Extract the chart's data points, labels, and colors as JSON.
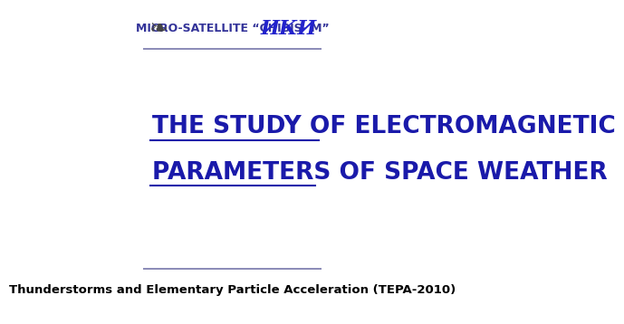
{
  "bg_color": "#ffffff",
  "header_line_color": "#7777aa",
  "footer_line_color": "#7777aa",
  "header_text": "MICRO-SATELLITE “CHIBIS- M”",
  "header_text_color": "#333399",
  "header_fontsize": 9,
  "main_title_line1": "THE STUDY OF ELECTROMAGNETIC",
  "main_title_line2": "PARAMETERS OF SPACE WEATHER",
  "main_title_color": "#1a1aaa",
  "main_title_fontsize": 19,
  "footer_text": "Thunderstorms and Elementary Particle Acceleration (TEPA-2010)",
  "footer_text_color": "#000000",
  "footer_fontsize": 9.5,
  "iki_text": "ИКИ",
  "iki_color": "#2222cc"
}
